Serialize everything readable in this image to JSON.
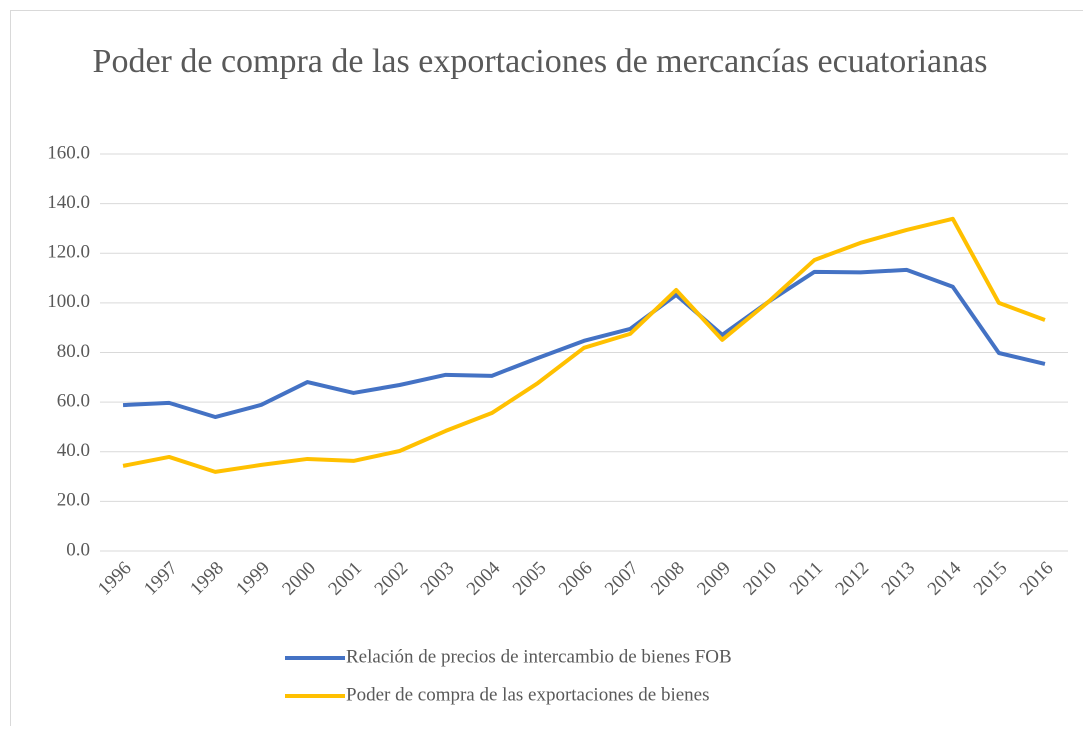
{
  "chart_data": {
    "type": "line",
    "title": "Poder de compra de las exportaciones de mercancías ecuatorianas",
    "categories": [
      "1996",
      "1997",
      "1998",
      "1999",
      "2000",
      "2001",
      "2002",
      "2003",
      "2004",
      "2005",
      "2006",
      "2007",
      "2008",
      "2009",
      "2010",
      "2011",
      "2012",
      "2013",
      "2014",
      "2015",
      "2016"
    ],
    "series": [
      {
        "name": "Relación de precios de intercambio de bienes FOB",
        "color": "#4472c4",
        "values": [
          58.8,
          59.7,
          54.0,
          58.9,
          68.1,
          63.7,
          66.9,
          71.0,
          70.6,
          77.8,
          84.7,
          89.5,
          103.2,
          87.1,
          100.4,
          112.5,
          112.3,
          113.3,
          106.5,
          79.8,
          75.4
        ]
      },
      {
        "name": "Poder de compra de las exportaciones de bienes",
        "color": "#ffc000",
        "values": [
          34.3,
          37.9,
          31.9,
          34.7,
          37.1,
          36.3,
          40.3,
          48.4,
          55.6,
          67.7,
          81.9,
          87.5,
          105.2,
          85.1,
          100.4,
          117.3,
          124.2,
          129.4,
          133.9,
          100.0,
          93.1
        ]
      }
    ],
    "ylim": [
      0,
      160
    ],
    "yticks": [
      {
        "value": 0,
        "label": "0.0"
      },
      {
        "value": 20,
        "label": "20.0"
      },
      {
        "value": 40,
        "label": "40.0"
      },
      {
        "value": 60,
        "label": "60.0"
      },
      {
        "value": 80,
        "label": "80.0"
      },
      {
        "value": 100,
        "label": "100.0"
      },
      {
        "value": 120,
        "label": "120.0"
      },
      {
        "value": 140,
        "label": "140.0"
      },
      {
        "value": 160,
        "label": "160.0"
      }
    ],
    "grid": true,
    "legend": "bottom"
  }
}
